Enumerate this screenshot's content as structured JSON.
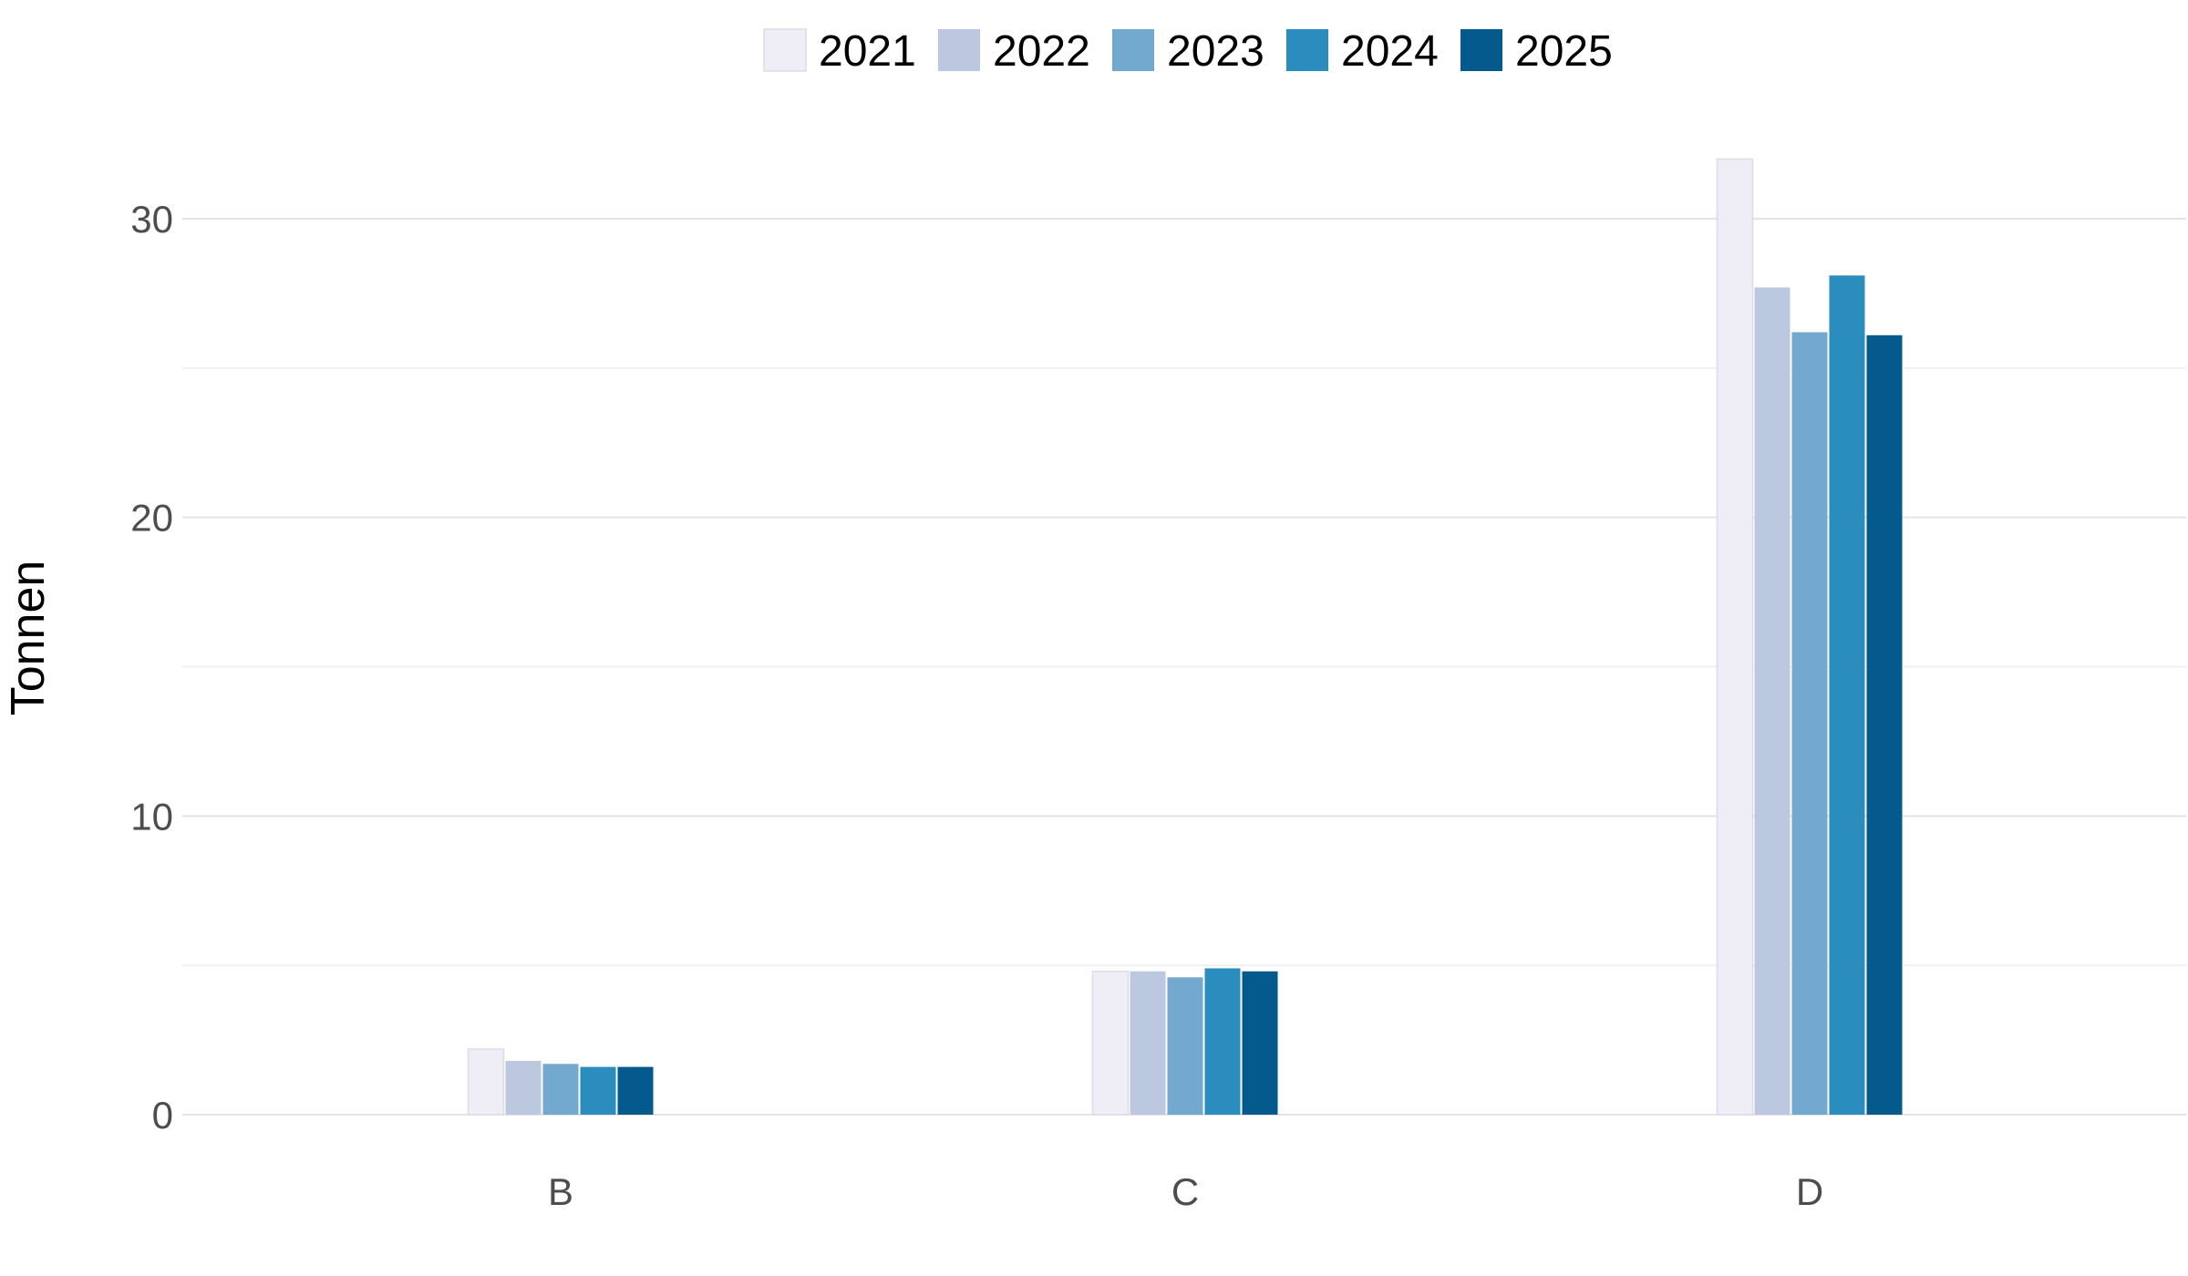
{
  "chart_data": {
    "type": "bar",
    "title": "",
    "xlabel": "",
    "ylabel": "Tonnen",
    "categories": [
      "B",
      "C",
      "D"
    ],
    "series": [
      {
        "name": "2021",
        "color": "#efedf5",
        "values": [
          2.2,
          4.8,
          32.0
        ]
      },
      {
        "name": "2022",
        "color": "#bcc8e0",
        "values": [
          1.8,
          4.8,
          27.7
        ]
      },
      {
        "name": "2023",
        "color": "#74a9cf",
        "values": [
          1.7,
          4.6,
          26.2
        ]
      },
      {
        "name": "2024",
        "color": "#2b8cbe",
        "values": [
          1.6,
          4.9,
          28.1
        ]
      },
      {
        "name": "2025",
        "color": "#045a8d",
        "values": [
          1.6,
          4.8,
          26.1
        ]
      }
    ],
    "ylim": [
      0,
      32.5
    ],
    "yticks": [
      0,
      10,
      20,
      30
    ],
    "ytick_labels": [
      "0",
      "10",
      "20",
      "30"
    ],
    "grid": true,
    "legend_position": "top"
  }
}
